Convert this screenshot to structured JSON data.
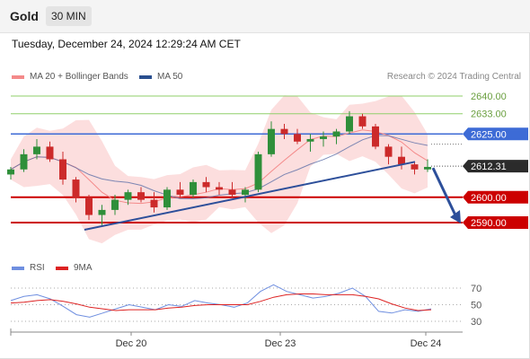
{
  "header": {
    "asset": "Gold",
    "timeframe": "30 MIN",
    "timestamp": "Tuesday, December 24, 2024 12:29:24 AM CET"
  },
  "legend": {
    "ma20": "MA 20 + Bollinger Bands",
    "ma50": "MA 50",
    "credit": "Research © 2024 Trading Central"
  },
  "colors": {
    "ma20": "#f48a8a",
    "ma50": "#2a4f8f",
    "band_fill": "#fbd6d6",
    "up_candle": "#2f8f3a",
    "down_candle": "#cc2a2a",
    "target_line": "#8fcf6a",
    "pivot_line": "#3d6bd6",
    "support_line": "#cc0000",
    "last_price_bg": "#2b2b2b",
    "rsi": "#6f8fe0",
    "rsi_ma": "#dd2222",
    "trendline": "#2d4f9a"
  },
  "chart_data": [
    {
      "type": "candlestick",
      "ylim": [
        2583,
        2645
      ],
      "y_ticks": [
        2640,
        2633,
        2625,
        2612.31,
        2600,
        2590
      ],
      "levels": [
        {
          "label": "2640.00",
          "value": 2640,
          "kind": "target"
        },
        {
          "label": "2633.00",
          "value": 2633,
          "kind": "target"
        },
        {
          "label": "2625.00",
          "value": 2625,
          "kind": "pivot"
        },
        {
          "label": "2612.31",
          "value": 2612.31,
          "kind": "last"
        },
        {
          "label": "2600.00",
          "value": 2600,
          "kind": "support"
        },
        {
          "label": "2590.00",
          "value": 2590,
          "kind": "support"
        }
      ],
      "x_ticks": [
        "Dec 20",
        "Dec 23",
        "Dec 24"
      ],
      "last_price": 2612.31,
      "candles_approx": [
        [
          2609,
          2612,
          2607,
          2611
        ],
        [
          2611,
          2619,
          2610,
          2617
        ],
        [
          2617,
          2623,
          2615,
          2620
        ],
        [
          2620,
          2622,
          2614,
          2615
        ],
        [
          2615,
          2618,
          2605,
          2607
        ],
        [
          2607,
          2608,
          2598,
          2600
        ],
        [
          2600,
          2601,
          2591,
          2593
        ],
        [
          2593,
          2597,
          2589,
          2595
        ],
        [
          2595,
          2601,
          2593,
          2599
        ],
        [
          2599,
          2603,
          2597,
          2602
        ],
        [
          2602,
          2604,
          2598,
          2599
        ],
        [
          2599,
          2602,
          2594,
          2596
        ],
        [
          2596,
          2604,
          2595,
          2603
        ],
        [
          2603,
          2606,
          2600,
          2601
        ],
        [
          2601,
          2607,
          2600,
          2606
        ],
        [
          2606,
          2608,
          2602,
          2604
        ],
        [
          2604,
          2606,
          2601,
          2603
        ],
        [
          2603,
          2606,
          2600,
          2601
        ],
        [
          2601,
          2604,
          2598,
          2603
        ],
        [
          2603,
          2618,
          2602,
          2617
        ],
        [
          2617,
          2630,
          2616,
          2627
        ],
        [
          2627,
          2629,
          2623,
          2625
        ],
        [
          2625,
          2627,
          2621,
          2622
        ],
        [
          2622,
          2625,
          2618,
          2623
        ],
        [
          2623,
          2626,
          2620,
          2624
        ],
        [
          2624,
          2627,
          2621,
          2626
        ],
        [
          2626,
          2634,
          2625,
          2632
        ],
        [
          2632,
          2633,
          2627,
          2628
        ],
        [
          2628,
          2629,
          2619,
          2620
        ],
        [
          2620,
          2621,
          2613,
          2616
        ],
        [
          2616,
          2620,
          2611,
          2613
        ],
        [
          2613,
          2614,
          2609,
          2611
        ],
        [
          2611,
          2615,
          2610,
          2612
        ]
      ],
      "trendline": {
        "from": 2590,
        "to": 2614
      },
      "forecast_arrow": {
        "from": 2612.31,
        "to": 2590
      }
    },
    {
      "type": "line",
      "title": "RSI",
      "series": [
        {
          "name": "RSI"
        },
        {
          "name": "9MA"
        }
      ],
      "y_ticks": [
        70,
        50,
        30
      ],
      "ylim": [
        20,
        80
      ],
      "rsi_approx": [
        55,
        60,
        62,
        57,
        48,
        38,
        35,
        40,
        45,
        50,
        47,
        44,
        50,
        48,
        55,
        52,
        50,
        47,
        52,
        66,
        74,
        66,
        62,
        58,
        60,
        64,
        70,
        60,
        42,
        40,
        44,
        42,
        45
      ],
      "ma9_approx": [
        52,
        53,
        55,
        56,
        54,
        51,
        47,
        45,
        43,
        44,
        44,
        44,
        46,
        47,
        49,
        50,
        50,
        50,
        50,
        54,
        59,
        62,
        63,
        63,
        62,
        62,
        62,
        60,
        57,
        51,
        46,
        43,
        44
      ]
    }
  ]
}
